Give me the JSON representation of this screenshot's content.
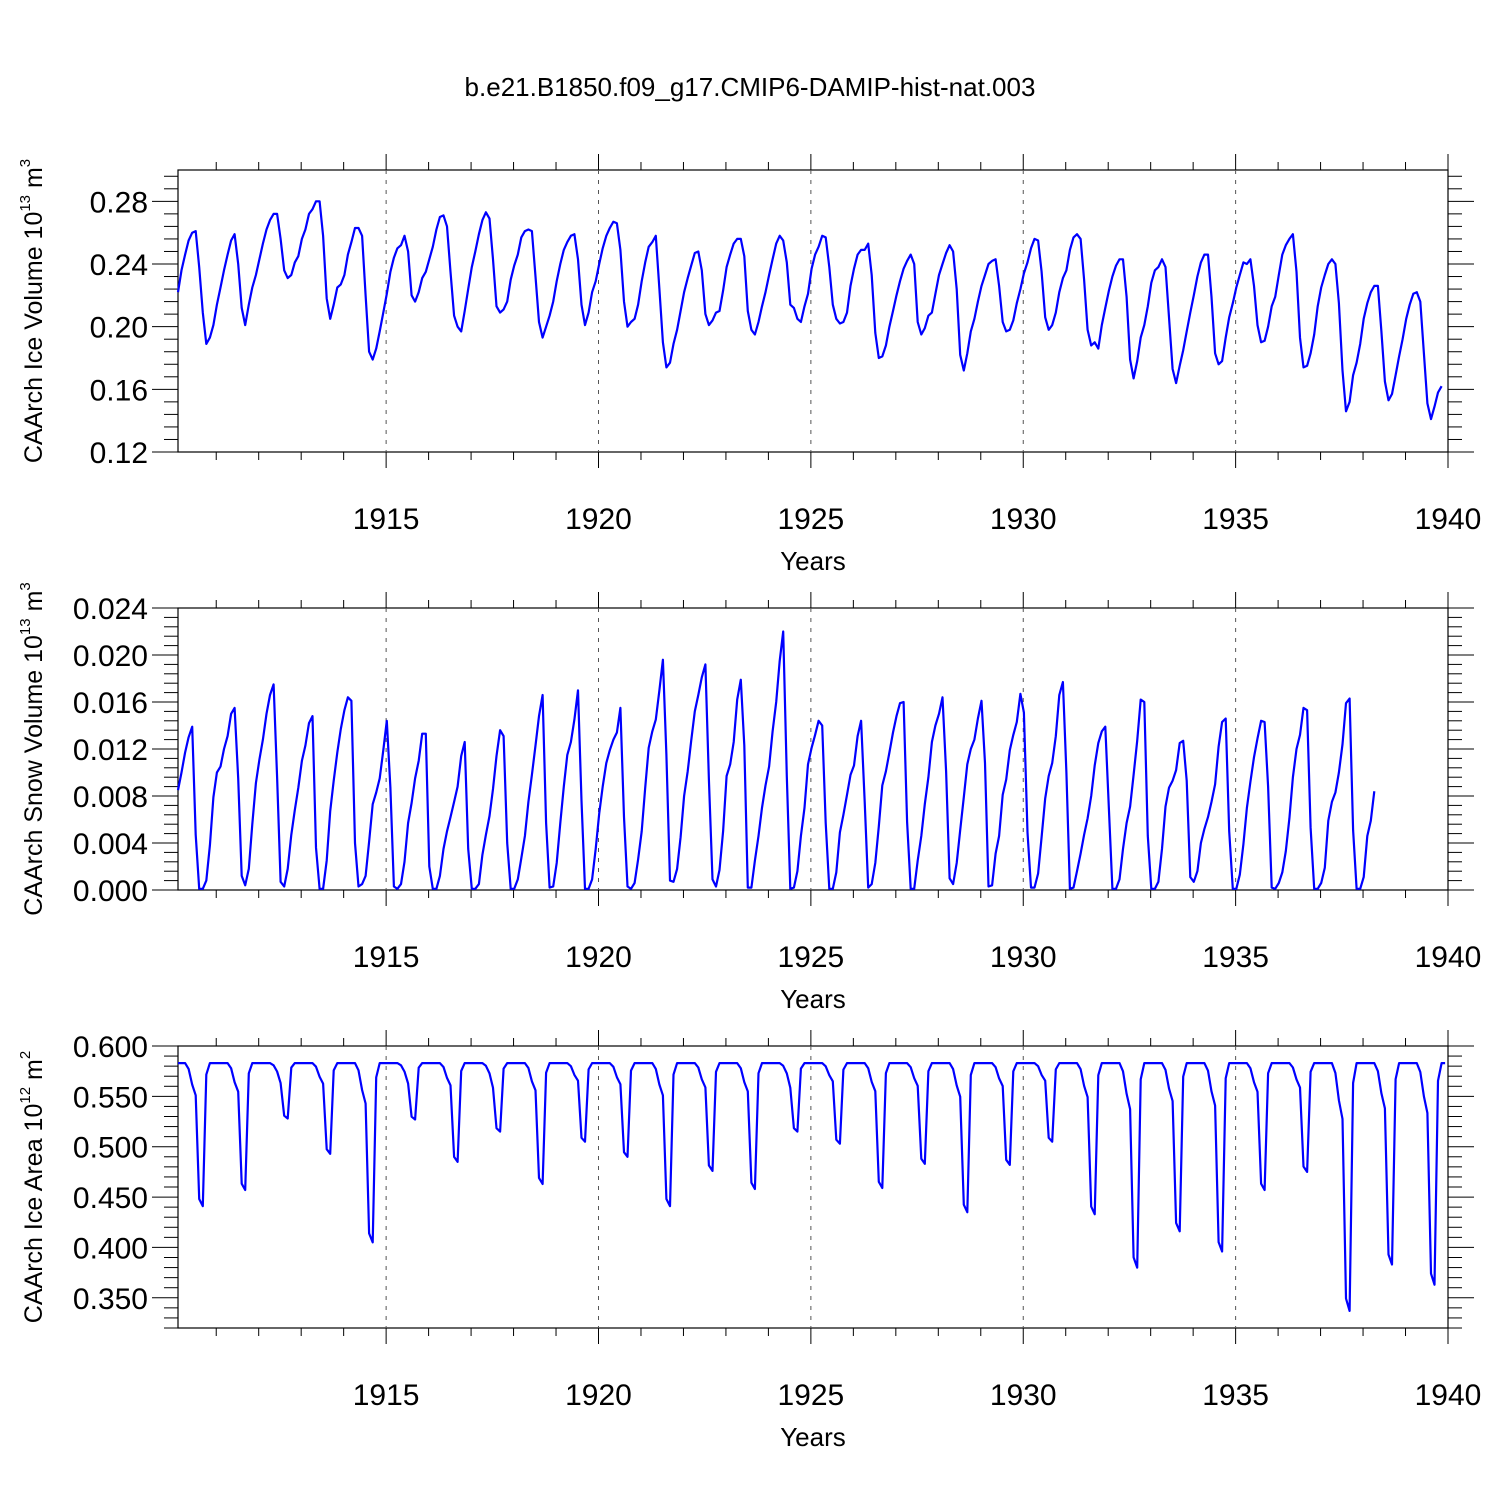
{
  "figure": {
    "title": "b.e21.B1850.f09_g17.CMIP6-DAMIP-hist-nat.003"
  },
  "chart_data": [
    {
      "type": "line",
      "title": "",
      "xlabel": "Years",
      "ylabel": {
        "text": "CAArch Ice Volume 10",
        "exp": "13",
        "unit": " m",
        "unit_exp": "3"
      },
      "xlim": [
        1910.1,
        1940.0
      ],
      "ylim": [
        0.12,
        0.3
      ],
      "x_ticks": [
        "1915",
        "1920",
        "1925",
        "1930",
        "1935",
        "1940"
      ],
      "y_ticks": [
        "0.12",
        "0.16",
        "0.20",
        "0.24",
        "0.28"
      ],
      "grid": "dashed vertical lines at labeled years",
      "line_color": "#0000ff",
      "series": [
        {
          "x_start": 1910.1,
          "x_step": 0.08333,
          "values": [
            0.222,
            0.236,
            0.246,
            0.255,
            0.26,
            0.261,
            0.238,
            0.209,
            0.189,
            0.193,
            0.201,
            0.214,
            0.225,
            0.236,
            0.246,
            0.255,
            0.259,
            0.24,
            0.212,
            0.201,
            0.214,
            0.225,
            0.233,
            0.243,
            0.253,
            0.262,
            0.268,
            0.272,
            0.272,
            0.256,
            0.236,
            0.231,
            0.233,
            0.241,
            0.245,
            0.256,
            0.262,
            0.272,
            0.275,
            0.28,
            0.28,
            0.258,
            0.218,
            0.205,
            0.214,
            0.225,
            0.227,
            0.233,
            0.246,
            0.254,
            0.263,
            0.263,
            0.258,
            0.22,
            0.184,
            0.179,
            0.186,
            0.197,
            0.209,
            0.221,
            0.235,
            0.244,
            0.25,
            0.252,
            0.258,
            0.248,
            0.22,
            0.216,
            0.222,
            0.231,
            0.235,
            0.243,
            0.251,
            0.262,
            0.27,
            0.271,
            0.264,
            0.235,
            0.207,
            0.2,
            0.197,
            0.21,
            0.224,
            0.238,
            0.248,
            0.259,
            0.268,
            0.273,
            0.269,
            0.243,
            0.213,
            0.209,
            0.211,
            0.216,
            0.23,
            0.239,
            0.246,
            0.257,
            0.261,
            0.262,
            0.261,
            0.232,
            0.203,
            0.193,
            0.2,
            0.207,
            0.216,
            0.229,
            0.24,
            0.249,
            0.254,
            0.258,
            0.259,
            0.243,
            0.214,
            0.201,
            0.209,
            0.222,
            0.229,
            0.24,
            0.25,
            0.258,
            0.263,
            0.267,
            0.266,
            0.249,
            0.216,
            0.2,
            0.203,
            0.205,
            0.214,
            0.229,
            0.241,
            0.251,
            0.254,
            0.258,
            0.224,
            0.19,
            0.174,
            0.177,
            0.189,
            0.198,
            0.21,
            0.222,
            0.231,
            0.239,
            0.247,
            0.248,
            0.236,
            0.208,
            0.201,
            0.204,
            0.209,
            0.21,
            0.223,
            0.238,
            0.246,
            0.253,
            0.256,
            0.256,
            0.245,
            0.21,
            0.198,
            0.195,
            0.203,
            0.213,
            0.222,
            0.233,
            0.243,
            0.253,
            0.258,
            0.255,
            0.241,
            0.214,
            0.212,
            0.205,
            0.203,
            0.213,
            0.221,
            0.237,
            0.246,
            0.251,
            0.258,
            0.257,
            0.238,
            0.214,
            0.205,
            0.202,
            0.203,
            0.209,
            0.226,
            0.237,
            0.246,
            0.249,
            0.249,
            0.253,
            0.233,
            0.196,
            0.18,
            0.181,
            0.188,
            0.2,
            0.21,
            0.22,
            0.229,
            0.237,
            0.242,
            0.246,
            0.24,
            0.203,
            0.195,
            0.199,
            0.207,
            0.209,
            0.221,
            0.233,
            0.24,
            0.247,
            0.252,
            0.248,
            0.224,
            0.182,
            0.172,
            0.183,
            0.197,
            0.205,
            0.216,
            0.226,
            0.233,
            0.24,
            0.242,
            0.243,
            0.226,
            0.203,
            0.197,
            0.198,
            0.204,
            0.215,
            0.224,
            0.234,
            0.241,
            0.25,
            0.256,
            0.255,
            0.235,
            0.206,
            0.198,
            0.201,
            0.209,
            0.222,
            0.231,
            0.236,
            0.249,
            0.257,
            0.259,
            0.256,
            0.23,
            0.198,
            0.188,
            0.19,
            0.186,
            0.201,
            0.212,
            0.223,
            0.232,
            0.239,
            0.243,
            0.243,
            0.219,
            0.179,
            0.167,
            0.178,
            0.193,
            0.201,
            0.213,
            0.228,
            0.236,
            0.238,
            0.243,
            0.238,
            0.206,
            0.173,
            0.164,
            0.175,
            0.185,
            0.197,
            0.209,
            0.22,
            0.232,
            0.241,
            0.246,
            0.246,
            0.219,
            0.183,
            0.176,
            0.178,
            0.193,
            0.206,
            0.215,
            0.225,
            0.233,
            0.241,
            0.24,
            0.243,
            0.226,
            0.201,
            0.19,
            0.191,
            0.2,
            0.213,
            0.219,
            0.233,
            0.246,
            0.252,
            0.256,
            0.259,
            0.235,
            0.193,
            0.174,
            0.175,
            0.183,
            0.195,
            0.213,
            0.225,
            0.233,
            0.24,
            0.243,
            0.24,
            0.215,
            0.172,
            0.146,
            0.152,
            0.169,
            0.177,
            0.189,
            0.205,
            0.215,
            0.222,
            0.226,
            0.226,
            0.197,
            0.165,
            0.153,
            0.157,
            0.169,
            0.181,
            0.192,
            0.205,
            0.214,
            0.221,
            0.222,
            0.216,
            0.183,
            0.151,
            0.141,
            0.149,
            0.158,
            0.162
          ]
        }
      ]
    },
    {
      "type": "line",
      "title": "",
      "xlabel": "Years",
      "ylabel": {
        "text": "CAArch Snow Volume 10",
        "exp": "13",
        "unit": " m",
        "unit_exp": "3"
      },
      "xlim": [
        1910.1,
        1940.0
      ],
      "ylim": [
        0.0,
        0.024
      ],
      "x_ticks": [
        "1915",
        "1920",
        "1925",
        "1930",
        "1935",
        "1940"
      ],
      "y_ticks": [
        "0.000",
        "0.004",
        "0.008",
        "0.012",
        "0.016",
        "0.020",
        "0.024"
      ],
      "grid": "dashed vertical lines at labeled years",
      "line_color": "#0000ff",
      "series": [
        {
          "x_start": 1910.1,
          "x_step": 0.08333,
          "values": [
            0.0085,
            0.01,
            0.0117,
            0.013,
            0.0139,
            0.0047,
            0.0001,
            0.0001,
            0.0008,
            0.0038,
            0.0079,
            0.01,
            0.0105,
            0.012,
            0.0131,
            0.015,
            0.0155,
            0.0095,
            0.0012,
            0.0004,
            0.0018,
            0.0056,
            0.0091,
            0.0111,
            0.0128,
            0.015,
            0.0166,
            0.0175,
            0.0096,
            0.0007,
            0.0003,
            0.0018,
            0.0047,
            0.0068,
            0.0087,
            0.011,
            0.0123,
            0.0142,
            0.0148,
            0.0036,
            0.0001,
            0.0001,
            0.0025,
            0.0067,
            0.0093,
            0.0117,
            0.0137,
            0.0153,
            0.0164,
            0.0161,
            0.004,
            0.0003,
            0.0005,
            0.0012,
            0.0041,
            0.0073,
            0.0083,
            0.0095,
            0.0119,
            0.0144,
            0.0087,
            0.0003,
            0.0001,
            0.0005,
            0.0024,
            0.0057,
            0.0074,
            0.0095,
            0.011,
            0.0133,
            0.0133,
            0.002,
            0.0001,
            0.0001,
            0.0012,
            0.0035,
            0.005,
            0.0062,
            0.0075,
            0.0088,
            0.0114,
            0.0126,
            0.0035,
            0.0001,
            0.0001,
            0.0005,
            0.003,
            0.0047,
            0.0063,
            0.0086,
            0.0114,
            0.0136,
            0.0131,
            0.004,
            0.0001,
            0.0001,
            0.0009,
            0.0027,
            0.0046,
            0.0075,
            0.0098,
            0.0123,
            0.0148,
            0.0166,
            0.0057,
            0.0002,
            0.0003,
            0.0023,
            0.0057,
            0.0088,
            0.0115,
            0.0126,
            0.0145,
            0.017,
            0.0076,
            0.0001,
            0.0001,
            0.0009,
            0.0035,
            0.0065,
            0.0088,
            0.0108,
            0.0119,
            0.0128,
            0.0134,
            0.0155,
            0.0062,
            0.0003,
            0.0001,
            0.0006,
            0.0026,
            0.005,
            0.0087,
            0.0121,
            0.0135,
            0.0145,
            0.017,
            0.0196,
            0.0115,
            0.0008,
            0.0007,
            0.0018,
            0.0045,
            0.008,
            0.0101,
            0.0127,
            0.0152,
            0.0166,
            0.0181,
            0.0192,
            0.0094,
            0.0009,
            0.0003,
            0.0017,
            0.005,
            0.0097,
            0.0107,
            0.0126,
            0.0162,
            0.0179,
            0.0123,
            0.0002,
            0.0002,
            0.0025,
            0.0046,
            0.007,
            0.0089,
            0.0105,
            0.0135,
            0.016,
            0.0195,
            0.022,
            0.0097,
            0.0001,
            0.0002,
            0.0016,
            0.0046,
            0.007,
            0.0107,
            0.0121,
            0.0132,
            0.0144,
            0.014,
            0.0057,
            0.0001,
            0.0001,
            0.0015,
            0.0049,
            0.0064,
            0.0081,
            0.0098,
            0.0106,
            0.0131,
            0.0144,
            0.0075,
            0.0002,
            0.0005,
            0.0023,
            0.0054,
            0.0089,
            0.0101,
            0.0117,
            0.0134,
            0.0148,
            0.0159,
            0.016,
            0.0058,
            0.0001,
            0.0001,
            0.0025,
            0.0046,
            0.0073,
            0.0096,
            0.0126,
            0.014,
            0.015,
            0.0164,
            0.0101,
            0.001,
            0.0005,
            0.0023,
            0.0051,
            0.0079,
            0.0107,
            0.012,
            0.0128,
            0.0146,
            0.0161,
            0.0108,
            0.0003,
            0.0004,
            0.0031,
            0.0046,
            0.0081,
            0.0094,
            0.0119,
            0.0132,
            0.0143,
            0.0167,
            0.0151,
            0.0049,
            0.0002,
            0.0002,
            0.0014,
            0.0045,
            0.0078,
            0.0097,
            0.0108,
            0.0131,
            0.0166,
            0.0177,
            0.01,
            0.0001,
            0.0002,
            0.0016,
            0.0031,
            0.0047,
            0.0061,
            0.008,
            0.0106,
            0.0125,
            0.0135,
            0.0139,
            0.0069,
            0.0001,
            0.0001,
            0.0009,
            0.0035,
            0.0057,
            0.0071,
            0.0098,
            0.0127,
            0.0162,
            0.016,
            0.0046,
            0.0001,
            0.0001,
            0.0007,
            0.0035,
            0.0071,
            0.0087,
            0.0093,
            0.0102,
            0.0125,
            0.0127,
            0.0093,
            0.0011,
            0.0007,
            0.0016,
            0.004,
            0.0052,
            0.0062,
            0.0075,
            0.009,
            0.0122,
            0.0143,
            0.0146,
            0.005,
            0.0001,
            0.0001,
            0.0013,
            0.0039,
            0.007,
            0.0092,
            0.0113,
            0.0129,
            0.0144,
            0.0143,
            0.0088,
            0.0002,
            0.0001,
            0.0006,
            0.0015,
            0.0033,
            0.0061,
            0.0096,
            0.012,
            0.0132,
            0.0155,
            0.0153,
            0.0053,
            0.0001,
            0.0001,
            0.0006,
            0.0019,
            0.0059,
            0.0075,
            0.0083,
            0.01,
            0.0124,
            0.0159,
            0.0163,
            0.0051,
            0.0001,
            0.0001,
            0.0011,
            0.0046,
            0.0059,
            0.0084
          ]
        }
      ]
    },
    {
      "type": "line",
      "title": "",
      "xlabel": "Years",
      "ylabel": {
        "text": "CAArch Ice Area 10",
        "exp": "12",
        "unit": " m",
        "unit_exp": "2"
      },
      "xlim": [
        1910.1,
        1940.0
      ],
      "ylim": [
        0.32,
        0.6
      ],
      "x_ticks": [
        "1915",
        "1920",
        "1925",
        "1930",
        "1935",
        "1940"
      ],
      "y_ticks": [
        "0.350",
        "0.400",
        "0.450",
        "0.500",
        "0.550",
        "0.600"
      ],
      "grid": "dashed vertical lines at labeled years",
      "line_color": "#0000ff",
      "series": [
        {
          "x_start": 1910.1,
          "x_step": 0.08333,
          "min_month_offset": 9,
          "minima": [
            0.441,
            0.457,
            0.528,
            0.493,
            0.405,
            0.527,
            0.485,
            0.515,
            0.463,
            0.505,
            0.49,
            0.441,
            0.476,
            0.458,
            0.515,
            0.503,
            0.459,
            0.483,
            0.435,
            0.482,
            0.505,
            0.433,
            0.38,
            0.416,
            0.396,
            0.457,
            0.475,
            0.337,
            0.383,
            0.363
          ],
          "max": 0.583
        }
      ]
    }
  ]
}
